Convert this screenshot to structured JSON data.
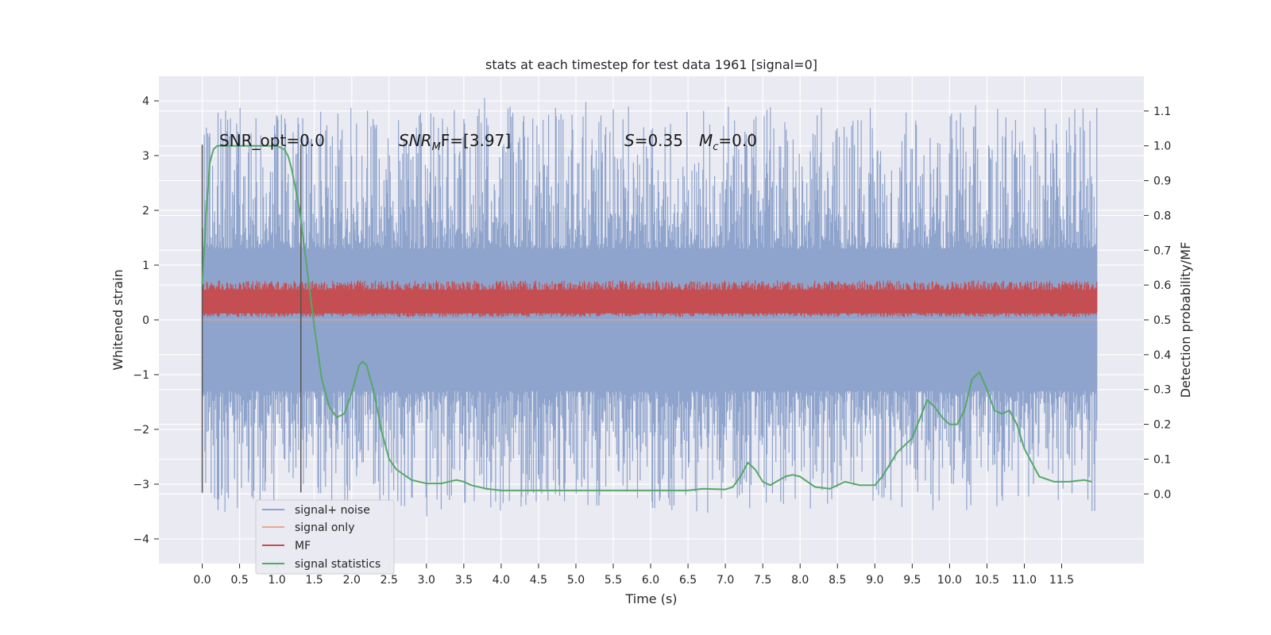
{
  "chart_data": {
    "type": "line",
    "title": "stats at each timestep for test data 1961 [signal=0]",
    "xlabel": "Time (s)",
    "ylabel": "Whitened strain",
    "y2label": "Detection probability/MF",
    "xlim": [
      -0.58,
      12.6
    ],
    "ylim": [
      -4.45,
      4.45
    ],
    "y2lim": [
      -0.2,
      1.2
    ],
    "xticks": [
      "0.0",
      "0.5",
      "1.0",
      "1.5",
      "2.0",
      "2.5",
      "3.0",
      "3.5",
      "4.0",
      "4.5",
      "5.0",
      "5.5",
      "6.0",
      "6.5",
      "7.0",
      "7.5",
      "8.0",
      "8.5",
      "9.0",
      "9.5",
      "10.0",
      "10.5",
      "11.0",
      "11.5"
    ],
    "yticks": [
      "4",
      "3",
      "2",
      "1",
      "0",
      "−1",
      "−2",
      "−3",
      "−4"
    ],
    "y2ticks": [
      "1.1",
      "1.0",
      "0.9",
      "0.8",
      "0.7",
      "0.6",
      "0.5",
      "0.4",
      "0.3",
      "0.2",
      "0.1",
      "0.0"
    ],
    "grid": true,
    "legend_placement": "lower-left",
    "annotations": {
      "snr_opt": "SNR_opt=0.0",
      "snr_mf_italic": "SNR",
      "snr_mf_sub": "M",
      "snr_mf_rest": "F=[3.97]",
      "s_italic": "S",
      "s_rest": "=0.35",
      "mc_italic": "M",
      "mc_sub": "c",
      "mc_rest": "=0.0"
    },
    "vlines_x": [
      0.0,
      1.32
    ],
    "series": [
      {
        "name": "signal+ noise",
        "color": "#8fa4cc",
        "envelope_y": [
          -1.3,
          1.3
        ],
        "peak_y_range": [
          -3.6,
          4.1
        ]
      },
      {
        "name": "signal only",
        "color": "#e8a88a",
        "values": "flat at 0"
      },
      {
        "name": "MF",
        "color": "#c44e52",
        "envelope_y": [
          0.05,
          0.72
        ]
      },
      {
        "name": "signal statistics",
        "color": "#55a868",
        "x": [
          0.0,
          0.05,
          0.1,
          0.15,
          0.2,
          0.3,
          0.5,
          0.8,
          1.0,
          1.1,
          1.15,
          1.2,
          1.3,
          1.4,
          1.5,
          1.6,
          1.7,
          1.8,
          1.9,
          2.0,
          2.1,
          2.15,
          2.2,
          2.3,
          2.4,
          2.5,
          2.6,
          2.8,
          3.0,
          3.2,
          3.4,
          3.5,
          3.6,
          3.8,
          4.0,
          4.5,
          5.0,
          5.5,
          6.0,
          6.5,
          6.7,
          7.0,
          7.1,
          7.2,
          7.3,
          7.4,
          7.5,
          7.6,
          7.8,
          7.9,
          8.0,
          8.2,
          8.4,
          8.6,
          8.8,
          9.0,
          9.1,
          9.3,
          9.5,
          9.7,
          9.8,
          9.9,
          10.0,
          10.1,
          10.2,
          10.3,
          10.4,
          10.5,
          10.6,
          10.7,
          10.8,
          10.9,
          11.0,
          11.2,
          11.4,
          11.6,
          11.8,
          11.9
        ],
        "y": [
          0.6,
          0.8,
          0.95,
          0.99,
          1.0,
          1.0,
          1.0,
          1.0,
          1.0,
          0.99,
          0.97,
          0.93,
          0.82,
          0.65,
          0.48,
          0.33,
          0.25,
          0.22,
          0.23,
          0.29,
          0.37,
          0.38,
          0.37,
          0.29,
          0.18,
          0.1,
          0.07,
          0.04,
          0.03,
          0.03,
          0.04,
          0.035,
          0.025,
          0.015,
          0.01,
          0.01,
          0.01,
          0.01,
          0.01,
          0.01,
          0.015,
          0.013,
          0.02,
          0.05,
          0.09,
          0.07,
          0.035,
          0.025,
          0.05,
          0.055,
          0.05,
          0.02,
          0.015,
          0.035,
          0.025,
          0.025,
          0.05,
          0.12,
          0.16,
          0.27,
          0.25,
          0.22,
          0.2,
          0.2,
          0.24,
          0.33,
          0.35,
          0.3,
          0.24,
          0.23,
          0.24,
          0.2,
          0.13,
          0.05,
          0.035,
          0.035,
          0.04,
          0.035
        ]
      }
    ]
  }
}
